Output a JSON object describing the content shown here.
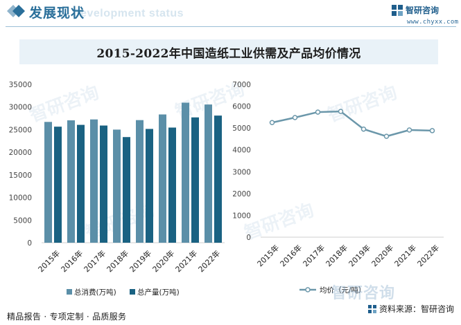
{
  "header": {
    "title": "发展现状",
    "ghost_text": "Development status",
    "brand_name": "智研咨询",
    "brand_url": "www.chyxx.com"
  },
  "chart_title": "2015-2022年中国造纸工业供需及产品均价情况",
  "chart_data": [
    {
      "type": "bar",
      "categories": [
        "2015年",
        "2016年",
        "2017年",
        "2018年",
        "2019年",
        "2020年",
        "2021年",
        "2022年"
      ],
      "series": [
        {
          "name": "总消费(万吨)",
          "values": [
            26700,
            27050,
            27250,
            25000,
            27100,
            28350,
            30950,
            30550
          ],
          "color": "#5b8fa8"
        },
        {
          "name": "总产量(万吨)",
          "values": [
            25650,
            26050,
            25900,
            23350,
            25150,
            25450,
            27700,
            28100
          ],
          "color": "#1a6282"
        }
      ],
      "ylim": [
        0,
        35000
      ],
      "yticks": [
        "0",
        "5000",
        "10000",
        "15000",
        "20000",
        "25000",
        "30000",
        "35000"
      ],
      "legend": "bottom"
    },
    {
      "type": "line",
      "categories": [
        "2015年",
        "2016年",
        "2017年",
        "2018年",
        "2019年",
        "2020年",
        "2021年",
        "2022年"
      ],
      "series": [
        {
          "name": "均价（元/吨）",
          "values": [
            5250,
            5480,
            5730,
            5760,
            4950,
            4620,
            4910,
            4880
          ],
          "color": "#6b97aa"
        }
      ],
      "ylim": [
        0,
        7000
      ],
      "yticks": [
        "0",
        "1000",
        "2000",
        "3000",
        "4000",
        "5000",
        "6000",
        "7000"
      ],
      "legend": "bottom"
    }
  ],
  "watermark": "智研咨询",
  "footer": {
    "left": "精品报告 · 专项定制 · 品质服务",
    "source": "资料来源：智研咨询"
  }
}
